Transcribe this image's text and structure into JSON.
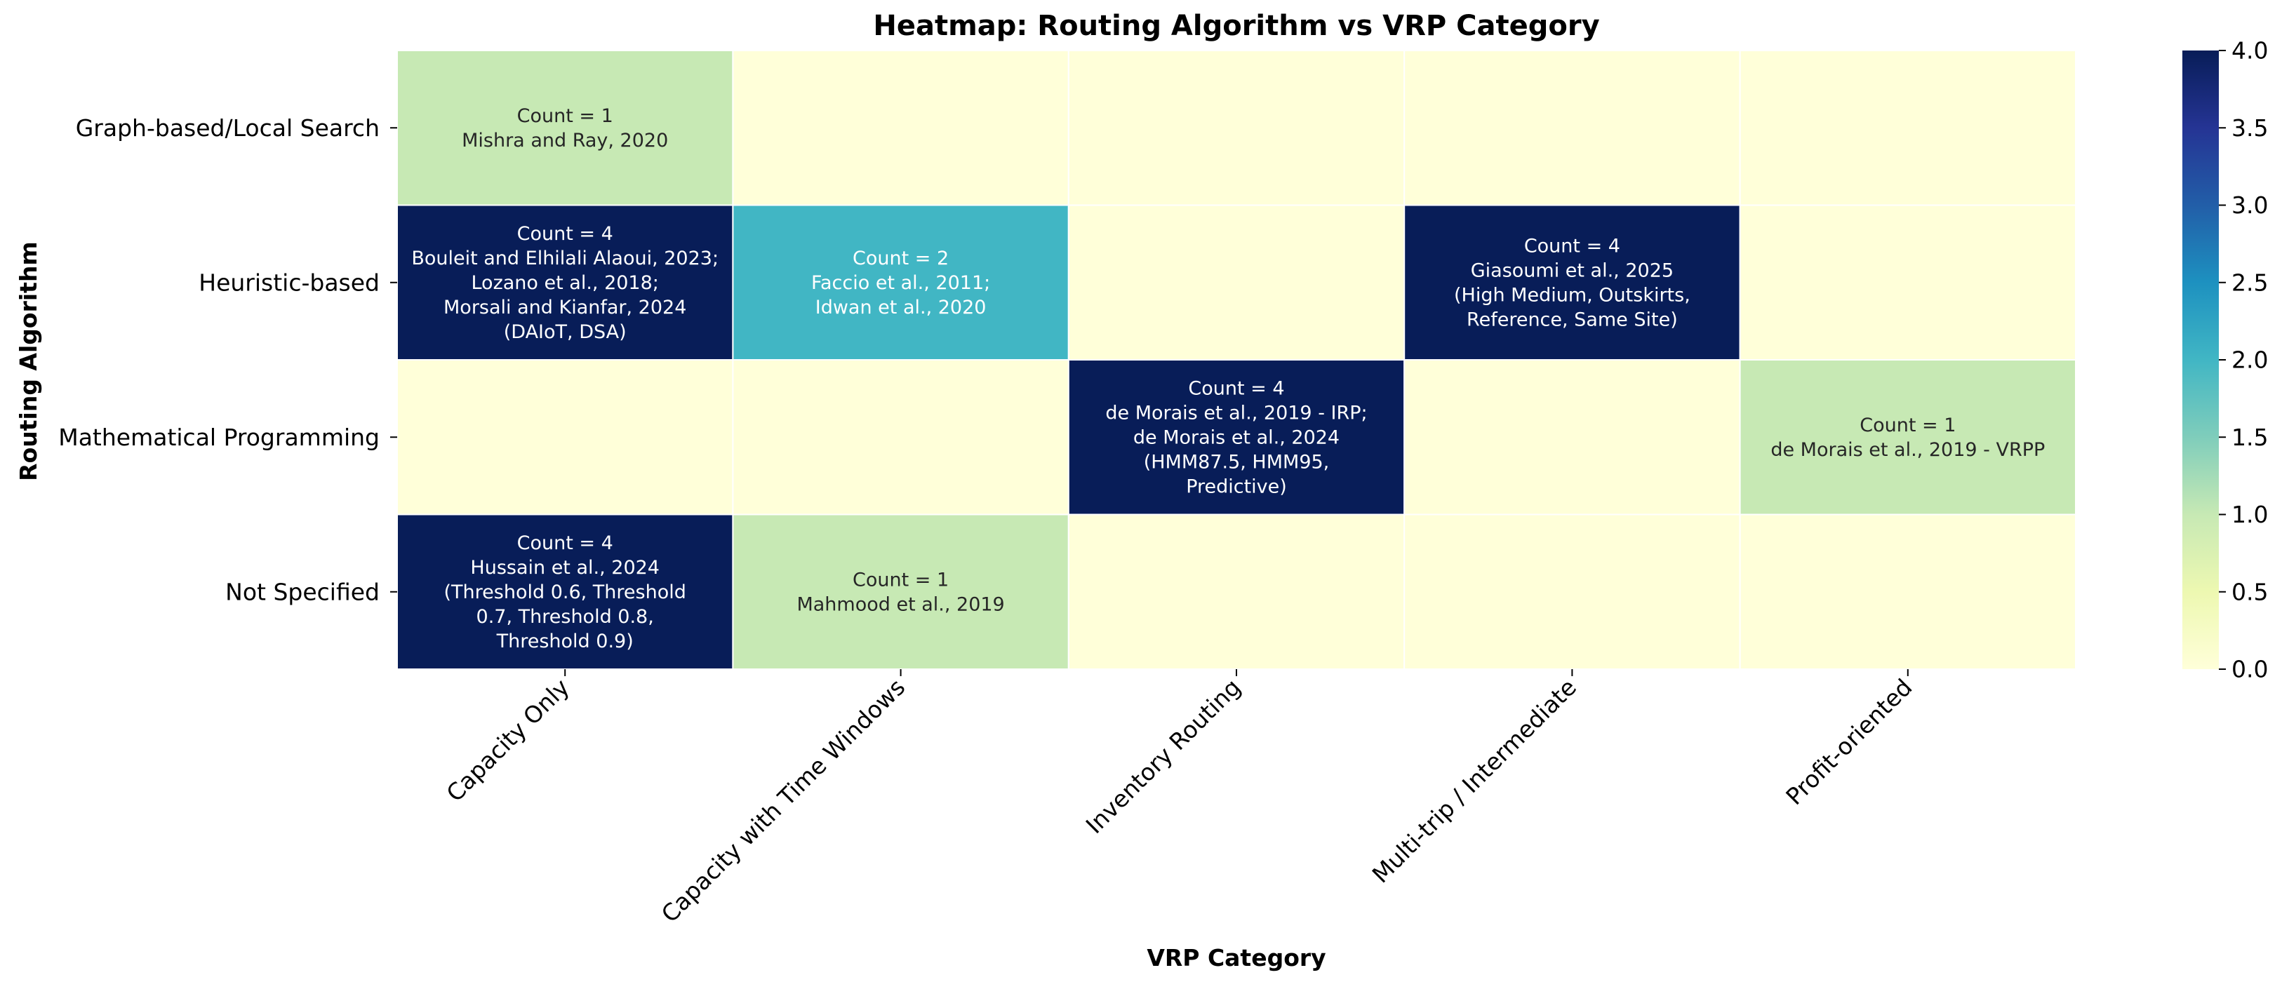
{
  "chart_data": {
    "type": "heatmap",
    "title": "Heatmap: Routing Algorithm vs VRP Category",
    "xlabel": "VRP Category",
    "ylabel": "Routing Algorithm",
    "x_categories": [
      "Capacity Only",
      "Capacity with Time Windows",
      "Inventory Routing",
      "Multi-trip / Intermediate",
      "Profit-oriented"
    ],
    "y_categories": [
      "Graph-based/Local Search",
      "Heuristic-based",
      "Mathematical Programming",
      "Not Specified"
    ],
    "values": [
      [
        1,
        0,
        0,
        0,
        0
      ],
      [
        4,
        2,
        0,
        4,
        0
      ],
      [
        0,
        0,
        4,
        0,
        1
      ],
      [
        4,
        1,
        0,
        0,
        0
      ]
    ],
    "annotations": [
      [
        [
          "Count = 1",
          "Mishra and Ray, 2020"
        ],
        [],
        [],
        [],
        []
      ],
      [
        [
          "Count = 4",
          "Bouleit and Elhilali Alaoui, 2023;",
          "Lozano et al., 2018;",
          "Morsali and Kianfar, 2024",
          "(DAIoT, DSA)"
        ],
        [
          "Count = 2",
          "Faccio et al., 2011;",
          "Idwan et al., 2020"
        ],
        [],
        [
          "Count = 4",
          "Giasoumi et al., 2025",
          "(High Medium, Outskirts,",
          "Reference, Same Site)"
        ],
        []
      ],
      [
        [],
        [],
        [
          "Count = 4",
          "de Morais et al., 2019 - IRP;",
          "de Morais et al., 2024",
          "(HMM87.5, HMM95,",
          "Predictive)"
        ],
        [],
        [
          "Count = 1",
          "de Morais et al., 2019 - VRPP"
        ]
      ],
      [
        [
          "Count = 4",
          "Hussain et al., 2024",
          "(Threshold 0.6, Threshold",
          "0.7, Threshold 0.8,",
          "Threshold 0.9)"
        ],
        [
          "Count = 1",
          "Mahmood et al., 2019"
        ],
        [],
        [],
        []
      ]
    ],
    "colormap": "YlGnBu",
    "vmin": 0,
    "vmax": 4,
    "colorbar_ticks": [
      "0.0",
      "0.5",
      "1.0",
      "1.5",
      "2.0",
      "2.5",
      "3.0",
      "3.5",
      "4.0"
    ],
    "grid": false
  }
}
